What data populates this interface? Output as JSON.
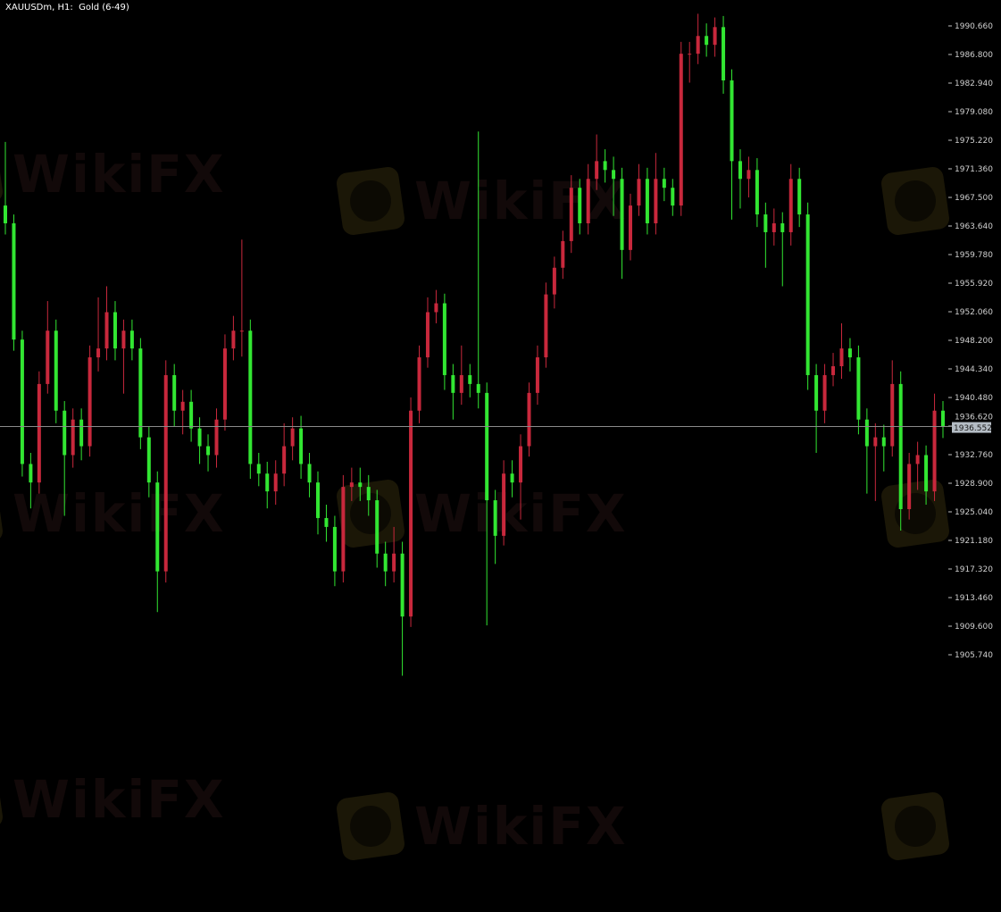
{
  "header": {
    "title": "XAUUSDm, H1:  Gold (6-49)"
  },
  "watermark": {
    "text": "WikiFX"
  },
  "colors": {
    "background": "#000000",
    "bull": "#c8283c",
    "bear": "#32e632",
    "price_line": "#8a8a8a",
    "price_label_bg": "#b4bcc4"
  },
  "chart_data": {
    "type": "candlestick",
    "symbol": "XAUUSDm",
    "timeframe": "H1",
    "ylim": [
      1902.0,
      1993.5
    ],
    "y_ticks": [
      "1990.660",
      "1986.800",
      "1982.940",
      "1979.080",
      "1975.220",
      "1971.360",
      "1967.500",
      "1963.640",
      "1959.780",
      "1955.920",
      "1952.060",
      "1948.200",
      "1944.340",
      "1940.480",
      "1936.620",
      "1932.760",
      "1928.900",
      "1925.040",
      "1921.180",
      "1917.320",
      "1913.460",
      "1909.600",
      "1905.740"
    ],
    "current_price": 1936.552,
    "current_price_label": "1936.552",
    "grid": false,
    "candles_ohlc": [
      [
        1966.4,
        1975.0,
        1962.5,
        1964.0
      ],
      [
        1964.0,
        1965.2,
        1946.8,
        1948.3
      ],
      [
        1948.3,
        1949.5,
        1929.8,
        1931.5
      ],
      [
        1931.5,
        1933.0,
        1925.5,
        1929.0
      ],
      [
        1929.0,
        1944.0,
        1927.5,
        1942.3
      ],
      [
        1942.3,
        1953.5,
        1941.0,
        1949.5
      ],
      [
        1949.5,
        1951.0,
        1937.0,
        1938.7
      ],
      [
        1938.7,
        1940.0,
        1924.5,
        1932.7
      ],
      [
        1932.7,
        1939.0,
        1931.0,
        1937.5
      ],
      [
        1937.5,
        1939.0,
        1932.0,
        1933.9
      ],
      [
        1933.9,
        1947.5,
        1932.5,
        1945.9
      ],
      [
        1945.9,
        1954.0,
        1944.0,
        1947.1
      ],
      [
        1947.1,
        1955.5,
        1945.5,
        1952.0
      ],
      [
        1952.0,
        1953.5,
        1945.5,
        1947.1
      ],
      [
        1947.1,
        1951.0,
        1941.0,
        1949.5
      ],
      [
        1949.5,
        1951.0,
        1945.5,
        1947.1
      ],
      [
        1947.1,
        1948.5,
        1933.5,
        1935.1
      ],
      [
        1935.1,
        1936.5,
        1927.0,
        1929.0
      ],
      [
        1929.0,
        1930.5,
        1911.5,
        1917.0
      ],
      [
        1917.0,
        1945.5,
        1915.5,
        1943.5
      ],
      [
        1943.5,
        1945.0,
        1936.5,
        1938.7
      ],
      [
        1938.7,
        1941.5,
        1935.5,
        1939.9
      ],
      [
        1939.9,
        1941.5,
        1934.5,
        1936.3
      ],
      [
        1936.3,
        1937.8,
        1931.5,
        1933.9
      ],
      [
        1933.9,
        1935.5,
        1930.5,
        1932.7
      ],
      [
        1932.7,
        1939.0,
        1931.0,
        1937.5
      ],
      [
        1937.5,
        1949.0,
        1936.0,
        1947.1
      ],
      [
        1947.1,
        1951.5,
        1945.5,
        1949.5
      ],
      [
        1949.5,
        1961.8,
        1946.0,
        1949.5
      ],
      [
        1949.5,
        1951.0,
        1929.5,
        1931.5
      ],
      [
        1931.5,
        1933.0,
        1928.5,
        1930.2
      ],
      [
        1930.2,
        1931.8,
        1925.5,
        1927.8
      ],
      [
        1927.8,
        1932.0,
        1926.0,
        1930.2
      ],
      [
        1930.2,
        1937.0,
        1928.5,
        1933.9
      ],
      [
        1933.9,
        1937.8,
        1932.0,
        1936.3
      ],
      [
        1936.3,
        1938.0,
        1929.5,
        1931.5
      ],
      [
        1931.5,
        1933.0,
        1927.0,
        1929.0
      ],
      [
        1929.0,
        1930.5,
        1922.0,
        1924.2
      ],
      [
        1924.2,
        1926.0,
        1921.0,
        1923.0
      ],
      [
        1923.0,
        1924.5,
        1915.0,
        1917.0
      ],
      [
        1917.0,
        1930.0,
        1915.5,
        1928.4
      ],
      [
        1928.4,
        1931.0,
        1926.5,
        1929.0
      ],
      [
        1929.0,
        1931.0,
        1926.5,
        1928.4
      ],
      [
        1928.4,
        1930.0,
        1924.5,
        1926.6
      ],
      [
        1926.6,
        1928.0,
        1917.5,
        1919.4
      ],
      [
        1919.4,
        1921.0,
        1915.0,
        1917.0
      ],
      [
        1917.0,
        1923.0,
        1915.5,
        1919.4
      ],
      [
        1919.4,
        1921.0,
        1902.9,
        1910.9
      ],
      [
        1910.9,
        1940.5,
        1909.5,
        1938.7
      ],
      [
        1938.7,
        1947.5,
        1937.0,
        1945.9
      ],
      [
        1945.9,
        1954.0,
        1944.5,
        1952.0
      ],
      [
        1952.0,
        1955.0,
        1950.5,
        1953.2
      ],
      [
        1953.2,
        1954.5,
        1941.5,
        1943.5
      ],
      [
        1943.5,
        1945.0,
        1937.5,
        1941.1
      ],
      [
        1941.1,
        1947.5,
        1939.5,
        1943.5
      ],
      [
        1943.5,
        1945.0,
        1940.5,
        1942.3
      ],
      [
        1942.3,
        1976.4,
        1939.0,
        1941.1
      ],
      [
        1941.1,
        1942.5,
        1909.7,
        1926.6
      ],
      [
        1926.6,
        1928.0,
        1918.0,
        1921.8
      ],
      [
        1921.8,
        1932.0,
        1920.5,
        1930.2
      ],
      [
        1930.2,
        1932.0,
        1927.0,
        1929.0
      ],
      [
        1929.0,
        1935.5,
        1924.0,
        1933.9
      ],
      [
        1933.9,
        1942.5,
        1932.5,
        1941.1
      ],
      [
        1941.1,
        1947.5,
        1939.5,
        1945.9
      ],
      [
        1945.9,
        1956.0,
        1944.5,
        1954.4
      ],
      [
        1954.4,
        1959.5,
        1952.5,
        1958.0
      ],
      [
        1958.0,
        1963.0,
        1956.5,
        1961.6
      ],
      [
        1961.6,
        1970.5,
        1960.0,
        1968.8
      ],
      [
        1968.8,
        1970.0,
        1962.5,
        1964.0
      ],
      [
        1964.0,
        1972.0,
        1962.5,
        1970.0
      ],
      [
        1970.0,
        1976.0,
        1968.5,
        1972.4
      ],
      [
        1972.4,
        1974.0,
        1969.5,
        1971.2
      ],
      [
        1971.2,
        1973.0,
        1965.0,
        1970.0
      ],
      [
        1970.0,
        1971.5,
        1956.5,
        1960.4
      ],
      [
        1960.4,
        1968.0,
        1959.0,
        1966.4
      ],
      [
        1966.4,
        1972.0,
        1965.0,
        1970.0
      ],
      [
        1970.0,
        1971.5,
        1962.5,
        1964.0
      ],
      [
        1964.0,
        1973.5,
        1962.5,
        1970.0
      ],
      [
        1970.0,
        1971.5,
        1967.0,
        1968.8
      ],
      [
        1968.8,
        1970.0,
        1965.0,
        1966.4
      ],
      [
        1966.4,
        1988.5,
        1965.0,
        1986.9
      ],
      [
        1986.9,
        1988.5,
        1983.0,
        1986.9
      ],
      [
        1986.9,
        1992.3,
        1985.5,
        1989.3
      ],
      [
        1989.3,
        1991.0,
        1986.5,
        1988.1
      ],
      [
        1988.1,
        1991.8,
        1986.5,
        1990.5
      ],
      [
        1990.5,
        1992.0,
        1981.5,
        1983.3
      ],
      [
        1983.3,
        1984.8,
        1964.5,
        1972.4
      ],
      [
        1972.4,
        1974.0,
        1966.0,
        1970.0
      ],
      [
        1970.0,
        1973.0,
        1967.5,
        1971.2
      ],
      [
        1971.2,
        1972.8,
        1963.5,
        1965.2
      ],
      [
        1965.2,
        1966.8,
        1958.0,
        1962.8
      ],
      [
        1962.8,
        1966.0,
        1961.0,
        1964.0
      ],
      [
        1964.0,
        1965.5,
        1955.5,
        1962.8
      ],
      [
        1962.8,
        1972.0,
        1961.0,
        1970.0
      ],
      [
        1970.0,
        1971.5,
        1963.5,
        1965.2
      ],
      [
        1965.2,
        1966.8,
        1941.5,
        1943.5
      ],
      [
        1943.5,
        1945.0,
        1933.0,
        1938.7
      ],
      [
        1938.7,
        1945.0,
        1937.0,
        1943.5
      ],
      [
        1943.5,
        1946.5,
        1942.0,
        1944.7
      ],
      [
        1944.7,
        1950.5,
        1943.0,
        1947.1
      ],
      [
        1947.1,
        1948.5,
        1944.0,
        1945.9
      ],
      [
        1945.9,
        1947.5,
        1935.5,
        1937.5
      ],
      [
        1937.5,
        1939.0,
        1927.5,
        1933.9
      ],
      [
        1933.9,
        1937.0,
        1926.5,
        1935.1
      ],
      [
        1935.1,
        1936.8,
        1930.5,
        1933.9
      ],
      [
        1933.9,
        1945.5,
        1932.5,
        1942.3
      ],
      [
        1942.3,
        1944.0,
        1922.5,
        1925.4
      ],
      [
        1925.4,
        1933.0,
        1924.0,
        1931.5
      ],
      [
        1931.5,
        1934.5,
        1928.0,
        1932.7
      ],
      [
        1932.7,
        1934.0,
        1926.0,
        1927.8
      ],
      [
        1927.8,
        1941.0,
        1926.5,
        1938.7
      ],
      [
        1938.7,
        1940.0,
        1935.0,
        1936.552
      ]
    ]
  }
}
